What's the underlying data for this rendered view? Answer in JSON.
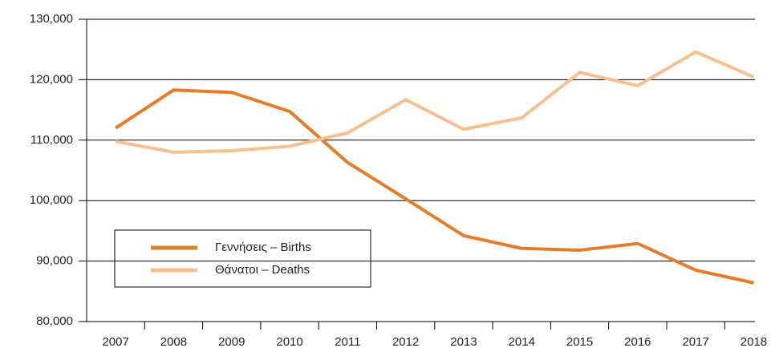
{
  "chart_data": {
    "type": "line",
    "categories": [
      "2007",
      "2008",
      "2009",
      "2010",
      "2011",
      "2012",
      "2013",
      "2014",
      "2015",
      "2016",
      "2017",
      "2018"
    ],
    "series": [
      {
        "name": "Γεννήσεις – Births",
        "color": "#e57c2a",
        "values": [
          112000,
          118300,
          117900,
          114750,
          106300,
          100300,
          94200,
          92100,
          91800,
          92900,
          88500,
          86400
        ]
      },
      {
        "name": "Θάνατοι – Deaths",
        "color": "#f9c08f",
        "values": [
          109800,
          108000,
          108250,
          109000,
          111200,
          116700,
          111800,
          113700,
          121200,
          119000,
          124600,
          120450
        ]
      }
    ],
    "ylim": [
      80000,
      130000
    ],
    "yticks": [
      {
        "value": 80000,
        "label": "80,000"
      },
      {
        "value": 90000,
        "label": "90,000"
      },
      {
        "value": 100000,
        "label": "100,000"
      },
      {
        "value": 110000,
        "label": "110,000"
      },
      {
        "value": 120000,
        "label": "120,000"
      },
      {
        "value": 130000,
        "label": "130,000"
      }
    ],
    "grid": true,
    "legend": "bottom-left"
  }
}
